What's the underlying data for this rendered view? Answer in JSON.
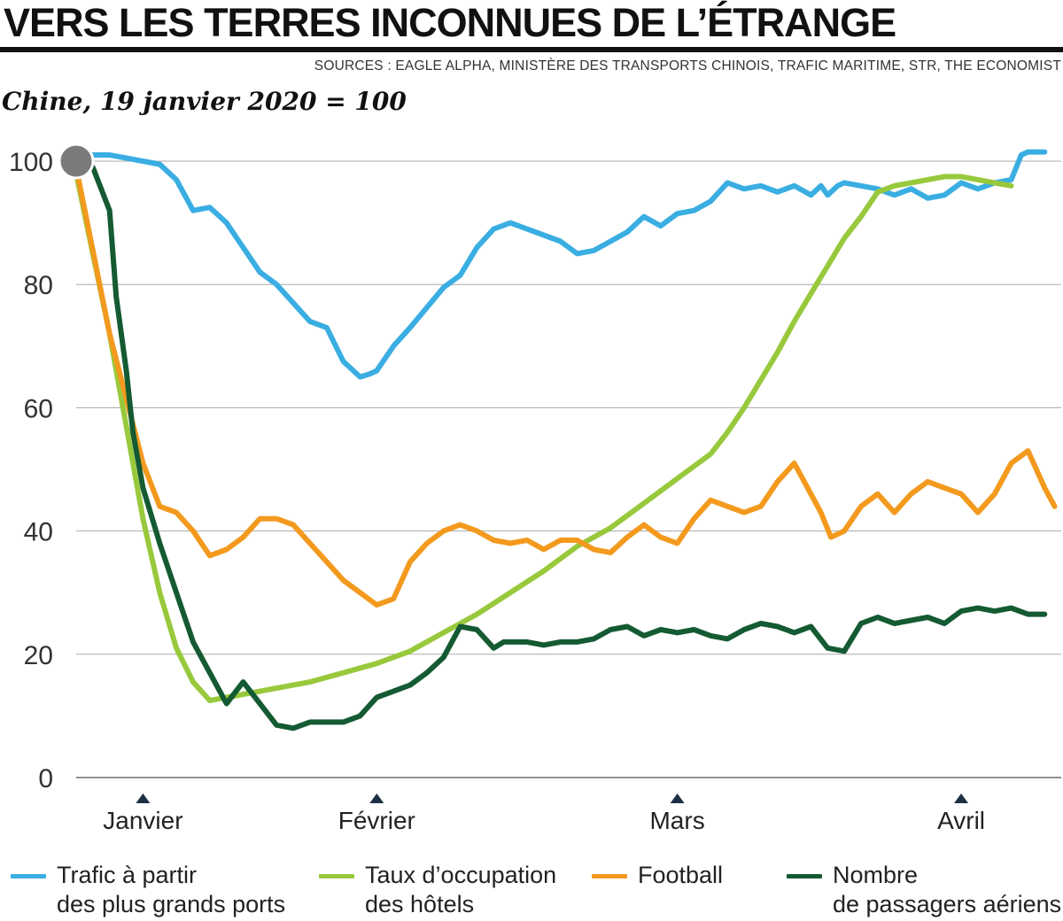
{
  "header": {
    "title": "VERS LES TERRES INCONNUES DE L’ÉTRANGE",
    "sources": "SOURCES : EAGLE ALPHA, MINISTÈRE DES TRANSPORTS CHINOIS, TRAFIC MARITIME, STR, THE ECONOMIST",
    "subtitle": "Chine, 19 janvier 2020 = 100"
  },
  "legend": [
    {
      "line1": "Trafic à partir",
      "line2": "des plus grands ports",
      "color": "#3aaee2"
    },
    {
      "line1": "Taux d’occupation",
      "line2": "des hôtels",
      "color": "#98c93c"
    },
    {
      "line1": "Football",
      "line2": "",
      "color": "#f39a1e"
    },
    {
      "line1": "Nombre",
      "line2": "de passagers aériens",
      "color": "#145a32"
    }
  ],
  "chart_data": {
    "type": "line",
    "title": "",
    "xlabel": "",
    "ylabel": "",
    "ylim": [
      0,
      100
    ],
    "yticks": [
      0,
      20,
      40,
      60,
      80,
      100
    ],
    "x_month_labels": [
      "Janvier",
      "Février",
      "Mars",
      "Avril"
    ],
    "x_month_days": [
      3,
      10,
      19,
      27.5
    ],
    "xlim": [
      1,
      30.5
    ],
    "grid": true,
    "index_marker": {
      "x": 1,
      "y": 100,
      "color": "#7a7a7a"
    },
    "series": [
      {
        "name": "Trafic à partir des plus grands ports",
        "color": "#3aaee2",
        "x": [
          1,
          2,
          3,
          3.5,
          4,
          4.5,
          5,
          5.5,
          6,
          6.5,
          7,
          7.5,
          8,
          8.5,
          9,
          9.5,
          9.8,
          10,
          10.5,
          11,
          12,
          12.5,
          13,
          13.5,
          14,
          15,
          15.5,
          16,
          16.5,
          17,
          17.5,
          18,
          18.5,
          19,
          19.5,
          20,
          20.5,
          21,
          21.5,
          22,
          22.5,
          23,
          23.3,
          23.5,
          23.8,
          24,
          25,
          25.5,
          26,
          26.5,
          27,
          27.5,
          28,
          28.5,
          29,
          29.3,
          29.5,
          30
        ],
        "y": [
          101,
          101,
          100,
          99.5,
          97,
          92,
          92.5,
          90,
          86,
          82,
          80,
          77,
          74,
          73,
          67.5,
          65,
          65.5,
          66,
          70,
          73,
          79.5,
          81.5,
          86,
          89,
          90,
          88,
          87,
          85,
          85.5,
          87,
          88.5,
          91,
          89.5,
          91.5,
          92,
          93.5,
          96.5,
          95.5,
          96,
          95,
          96,
          94.5,
          96,
          94.5,
          96,
          96.5,
          95.5,
          94.5,
          95.5,
          94,
          94.5,
          96.5,
          95.5,
          96.5,
          97,
          101,
          101.5,
          101.5
        ]
      },
      {
        "name": "Taux d’occupation des hôtels",
        "color": "#98c93c",
        "x": [
          1,
          1.5,
          2,
          2.5,
          3,
          3.5,
          4,
          4.5,
          5,
          5.5,
          6,
          6.5,
          7,
          8,
          9,
          10,
          11,
          12,
          13,
          14,
          15,
          16,
          17,
          18,
          19,
          20,
          20.5,
          21,
          21.5,
          22,
          22.5,
          23,
          23.5,
          24,
          24.5,
          25,
          25.5,
          26,
          26.5,
          27,
          27.5,
          28,
          28.5,
          29
        ],
        "y": [
          98,
          85,
          72,
          57,
          42,
          30,
          21,
          15.5,
          12.5,
          13,
          13.5,
          14,
          14.5,
          15.5,
          17,
          18.5,
          20.5,
          23.5,
          26.5,
          30,
          33.5,
          37.5,
          40.5,
          44.5,
          48.5,
          52.5,
          56,
          60,
          64.5,
          69,
          74,
          78.5,
          83,
          87.5,
          91,
          95,
          96,
          96.5,
          97,
          97.5,
          97.5,
          97,
          96.5,
          96
        ]
      },
      {
        "name": "Football",
        "color": "#f39a1e",
        "x": [
          1,
          2,
          3,
          3.5,
          4,
          4.5,
          5,
          5.5,
          6,
          6.5,
          7,
          7.5,
          8,
          8.5,
          9,
          9.5,
          10,
          10.5,
          11,
          11.5,
          12,
          12.5,
          13,
          13.5,
          14,
          14.5,
          15,
          15.5,
          16,
          16.5,
          17,
          17.5,
          18,
          18.5,
          19,
          19.5,
          20,
          20.5,
          21,
          21.5,
          22,
          22.5,
          23,
          23.3,
          23.6,
          24,
          24.5,
          25,
          25.5,
          26,
          26.5,
          27,
          27.5,
          28,
          28.5,
          29,
          29.5,
          30,
          30.3
        ],
        "y": [
          99,
          72,
          51,
          44,
          43,
          40,
          36,
          37,
          39,
          42,
          42,
          41,
          38,
          35,
          32,
          30,
          28,
          29,
          35,
          38,
          40,
          41,
          40,
          38.5,
          38,
          38.5,
          37,
          38.5,
          38.5,
          37,
          36.5,
          39,
          41,
          39,
          38,
          42,
          45,
          44,
          43,
          44,
          48,
          51,
          46,
          43,
          39,
          40,
          44,
          46,
          43,
          46,
          48,
          47,
          46,
          43,
          46,
          51,
          53,
          47,
          44
        ]
      },
      {
        "name": "Nombre de passagers aériens",
        "color": "#145a32",
        "x": [
          1,
          1.5,
          2,
          2.2,
          2.5,
          2.7,
          3,
          3.5,
          4,
          4.5,
          5,
          5.5,
          6,
          6.5,
          7,
          7.5,
          8,
          8.5,
          9,
          9.5,
          10,
          10.5,
          11,
          11.5,
          12,
          12.5,
          13,
          13.5,
          13.8,
          14,
          14.5,
          15,
          15.5,
          16,
          16.5,
          17,
          17.5,
          18,
          18.5,
          19,
          19.5,
          20,
          20.5,
          21,
          21.5,
          22,
          22.5,
          23,
          23.5,
          24,
          24.5,
          25,
          25.5,
          26,
          26.5,
          27,
          27.5,
          28,
          28.5,
          29,
          29.5,
          30
        ],
        "y": [
          100,
          99,
          92,
          78,
          66,
          56,
          47,
          38,
          30,
          22,
          17,
          12,
          15.5,
          12,
          8.5,
          8,
          9,
          9,
          9,
          10,
          13,
          14,
          15,
          17,
          19.5,
          24.5,
          24,
          21,
          22,
          22,
          22,
          21.5,
          22,
          22,
          22.5,
          24,
          24.5,
          23,
          24,
          23.5,
          24,
          23,
          22.5,
          24,
          25,
          24.5,
          23.5,
          24.5,
          21,
          20.5,
          25,
          26,
          25,
          25.5,
          26,
          25,
          27,
          27.5,
          27,
          27.5,
          26.5,
          26.5
        ]
      }
    ]
  }
}
